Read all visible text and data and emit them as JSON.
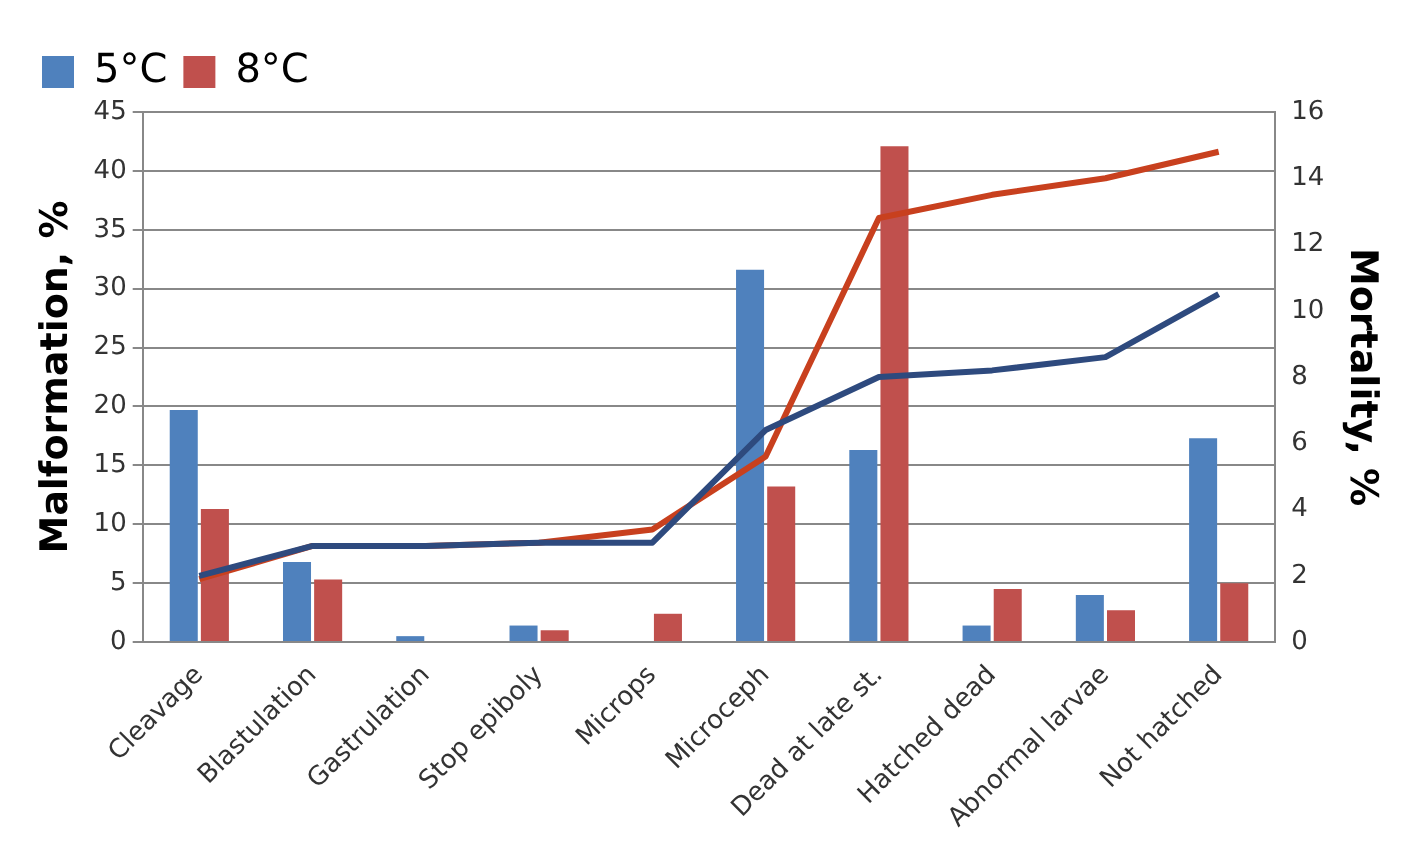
{
  "chart_data": {
    "type": "bar",
    "ylabel": "Malformation, %",
    "y2label": "Mortality, %",
    "categories": [
      "Cleavage",
      "Blastulation",
      "Gastrulation",
      "Stop epiboly",
      "Microps",
      "Microceph",
      "Dead at late st.",
      "Hatched dead",
      "Abnormal larvae",
      "Not hatched"
    ],
    "series": [
      {
        "name": "5°C",
        "color": "#4f81bd",
        "values": [
          19.7,
          6.8,
          0.5,
          1.4,
          null,
          31.6,
          16.3,
          1.4,
          4.0,
          17.3
        ]
      },
      {
        "name": "8°C",
        "color": "#c0504d",
        "values": [
          11.3,
          5.3,
          null,
          1.0,
          2.4,
          13.2,
          42.1,
          4.5,
          2.7,
          5.0
        ]
      },
      {
        "type": "line",
        "axis": "y2",
        "color": "#2e4a7e",
        "values": [
          2.0,
          2.9,
          2.9,
          3.0,
          3.0,
          6.4,
          8.0,
          8.2,
          8.6,
          10.5
        ]
      },
      {
        "type": "line",
        "axis": "y2",
        "color": "#c8401e",
        "values": [
          1.9,
          2.9,
          2.9,
          3.0,
          3.4,
          5.6,
          12.8,
          13.5,
          14.0,
          14.8
        ]
      }
    ],
    "ylim": [
      0,
      45
    ],
    "yticks": [
      0,
      5,
      10,
      15,
      20,
      25,
      30,
      35,
      40,
      45
    ],
    "y2lim": [
      0,
      16
    ],
    "y2ticks": [
      0,
      2,
      4,
      6,
      8,
      10,
      12,
      14,
      16
    ],
    "grid": "y",
    "legend": "top left",
    "marker": "none"
  }
}
